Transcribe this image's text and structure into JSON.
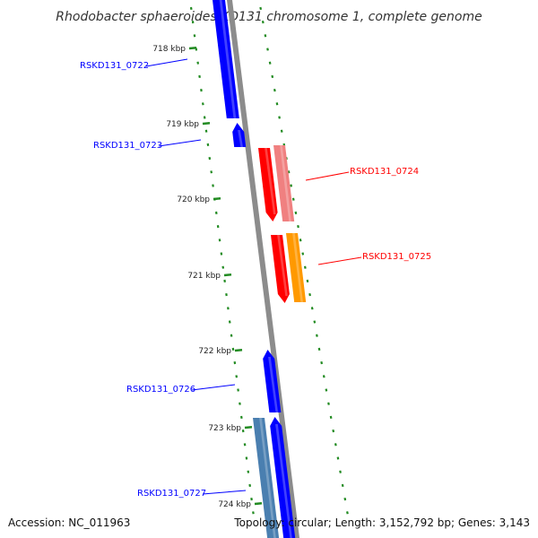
{
  "title": "Rhodobacter sphaeroides KD131 chromosome 1, complete genome",
  "footer": {
    "accession": "Accession: NC_011963",
    "summary": "Topology: circular; Length: 3,152,792 bp; Genes: 3,143"
  },
  "colors": {
    "backbone": "#8c8c8c",
    "tick": "#228b22",
    "forward_strand": "#0000ff",
    "forward_strand_light": "#4a7fb0",
    "reverse_strand": "#ff0000",
    "reverse_strand_light": "#f08080",
    "reverse_strand_orange": "#ff9900"
  },
  "scale_ticks": [
    {
      "label": "718 kbp",
      "kbp": 718
    },
    {
      "label": "719 kbp",
      "kbp": 719
    },
    {
      "label": "720 kbp",
      "kbp": 720
    },
    {
      "label": "721 kbp",
      "kbp": 721
    },
    {
      "label": "722 kbp",
      "kbp": 722
    },
    {
      "label": "723 kbp",
      "kbp": 723
    },
    {
      "label": "724 kbp",
      "kbp": 724
    }
  ],
  "genes": [
    {
      "label": "RSKD131_0722",
      "strand": "forward"
    },
    {
      "label": "RSKD131_0723",
      "strand": "forward"
    },
    {
      "label": "RSKD131_0724",
      "strand": "reverse"
    },
    {
      "label": "RSKD131_0725",
      "strand": "reverse"
    },
    {
      "label": "RSKD131_0726",
      "strand": "forward"
    },
    {
      "label": "RSKD131_0727",
      "strand": "forward"
    }
  ]
}
